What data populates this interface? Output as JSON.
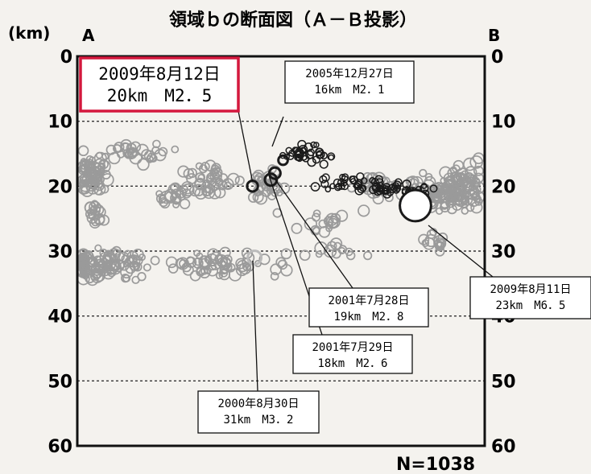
{
  "chart_data": {
    "type": "scatter",
    "title": "領域ｂの断面図（Ａ－Ｂ投影）",
    "ylabel": "(km)",
    "end_labels": {
      "left": "A",
      "right": "B"
    },
    "ylim": [
      0,
      60
    ],
    "yticks": [
      "0",
      "10",
      "20",
      "30",
      "40",
      "50",
      "60"
    ],
    "grid": "dashed horizontal at 10, 20, 30, 40, 50 km",
    "count_label": "N=1038",
    "colors": {
      "gray_points": "#9a9a9a",
      "black_points": "#1a1a1a",
      "highlight_box": "#d4183d"
    },
    "highlight": {
      "date": "2009年8月12日",
      "info": "20km　M2．5",
      "x": 0.43,
      "depth": 20,
      "mag": 2.5
    },
    "annotations": [
      {
        "date": "2005年12月27日",
        "info": "16km　M2．1",
        "x": 0.505,
        "depth": 16,
        "mag": 2.1
      },
      {
        "date": "2001年7月28日",
        "info": "19km　M2．8",
        "x": 0.475,
        "depth": 19,
        "mag": 2.8
      },
      {
        "date": "2001年7月29日",
        "info": "18km　M2．6",
        "x": 0.485,
        "depth": 18,
        "mag": 2.6
      },
      {
        "date": "2009年8月11日",
        "info": "23km　M6．5",
        "x": 0.83,
        "depth": 23,
        "mag": 6.5
      },
      {
        "date": "2000年8月30日",
        "info": "31km　M3．2",
        "x": 0.435,
        "depth": 31,
        "mag": 3.2
      }
    ]
  }
}
